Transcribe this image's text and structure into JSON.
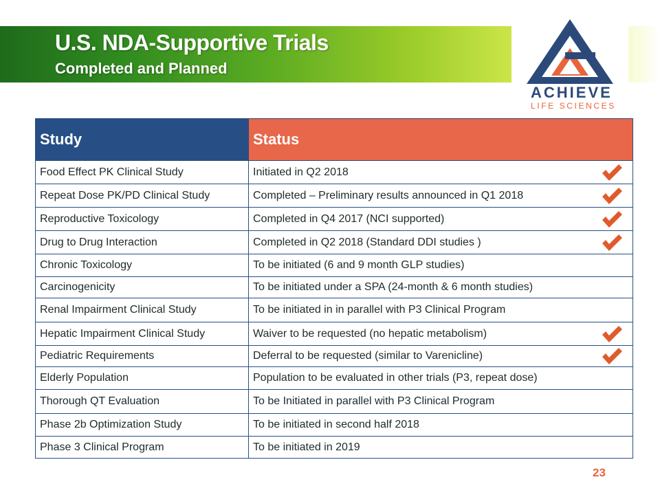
{
  "header": {
    "title": "U.S. NDA-Supportive Trials",
    "subtitle": "Completed and Planned"
  },
  "logo": {
    "wordmark": "ACHIEVE",
    "tagline": "LIFE SCIENCES",
    "colors": {
      "navy": "#2b4a7a",
      "orange": "#e8643c"
    }
  },
  "table": {
    "headers": {
      "study": "Study",
      "status": "Status"
    },
    "header_colors": {
      "study": "#274f86",
      "status": "#e8664a"
    },
    "check_icon": "checkmark-icon",
    "check_color": "#e05a2c",
    "rows": [
      {
        "study": "Food Effect PK Clinical Study",
        "status": "Initiated in Q2 2018",
        "checked": true
      },
      {
        "study": "Repeat Dose PK/PD Clinical Study",
        "status": "Completed – Preliminary results announced in Q1 2018",
        "checked": true
      },
      {
        "study": "Reproductive Toxicology",
        "status": "Completed in Q4 2017 (NCI supported)",
        "checked": true
      },
      {
        "study": "Drug to Drug Interaction",
        "status": "Completed in Q2 2018 (Standard DDI studies )",
        "checked": true
      },
      {
        "study": "Chronic Toxicology",
        "status": "To be initiated (6 and 9 month GLP studies)",
        "checked": false
      },
      {
        "study": "Carcinogenicity",
        "status": "To be initiated under a SPA (24-month & 6 month studies)",
        "checked": false
      },
      {
        "study": "Renal Impairment Clinical Study",
        "status": "To be initiated in in parallel with P3 Clinical Program",
        "checked": false
      },
      {
        "study": "Hepatic Impairment Clinical Study",
        "status": "Waiver to be requested (no hepatic metabolism)",
        "checked": true
      },
      {
        "study": "Pediatric Requirements",
        "status": "Deferral to be requested (similar to Varenicline)",
        "checked": true
      },
      {
        "study": "Elderly Population",
        "status": "Population to be evaluated in other trials (P3, repeat dose)",
        "checked": false
      },
      {
        "study": "Thorough QT Evaluation",
        "status": "To be Initiated in parallel with P3 Clinical Program",
        "checked": false
      },
      {
        "study": "Phase 2b Optimization Study",
        "status": "To be initiated in second half 2018",
        "checked": false
      },
      {
        "study": "Phase 3 Clinical Program",
        "status": "To be initiated in 2019",
        "checked": false
      }
    ]
  },
  "footer": {
    "page_number": "23"
  }
}
